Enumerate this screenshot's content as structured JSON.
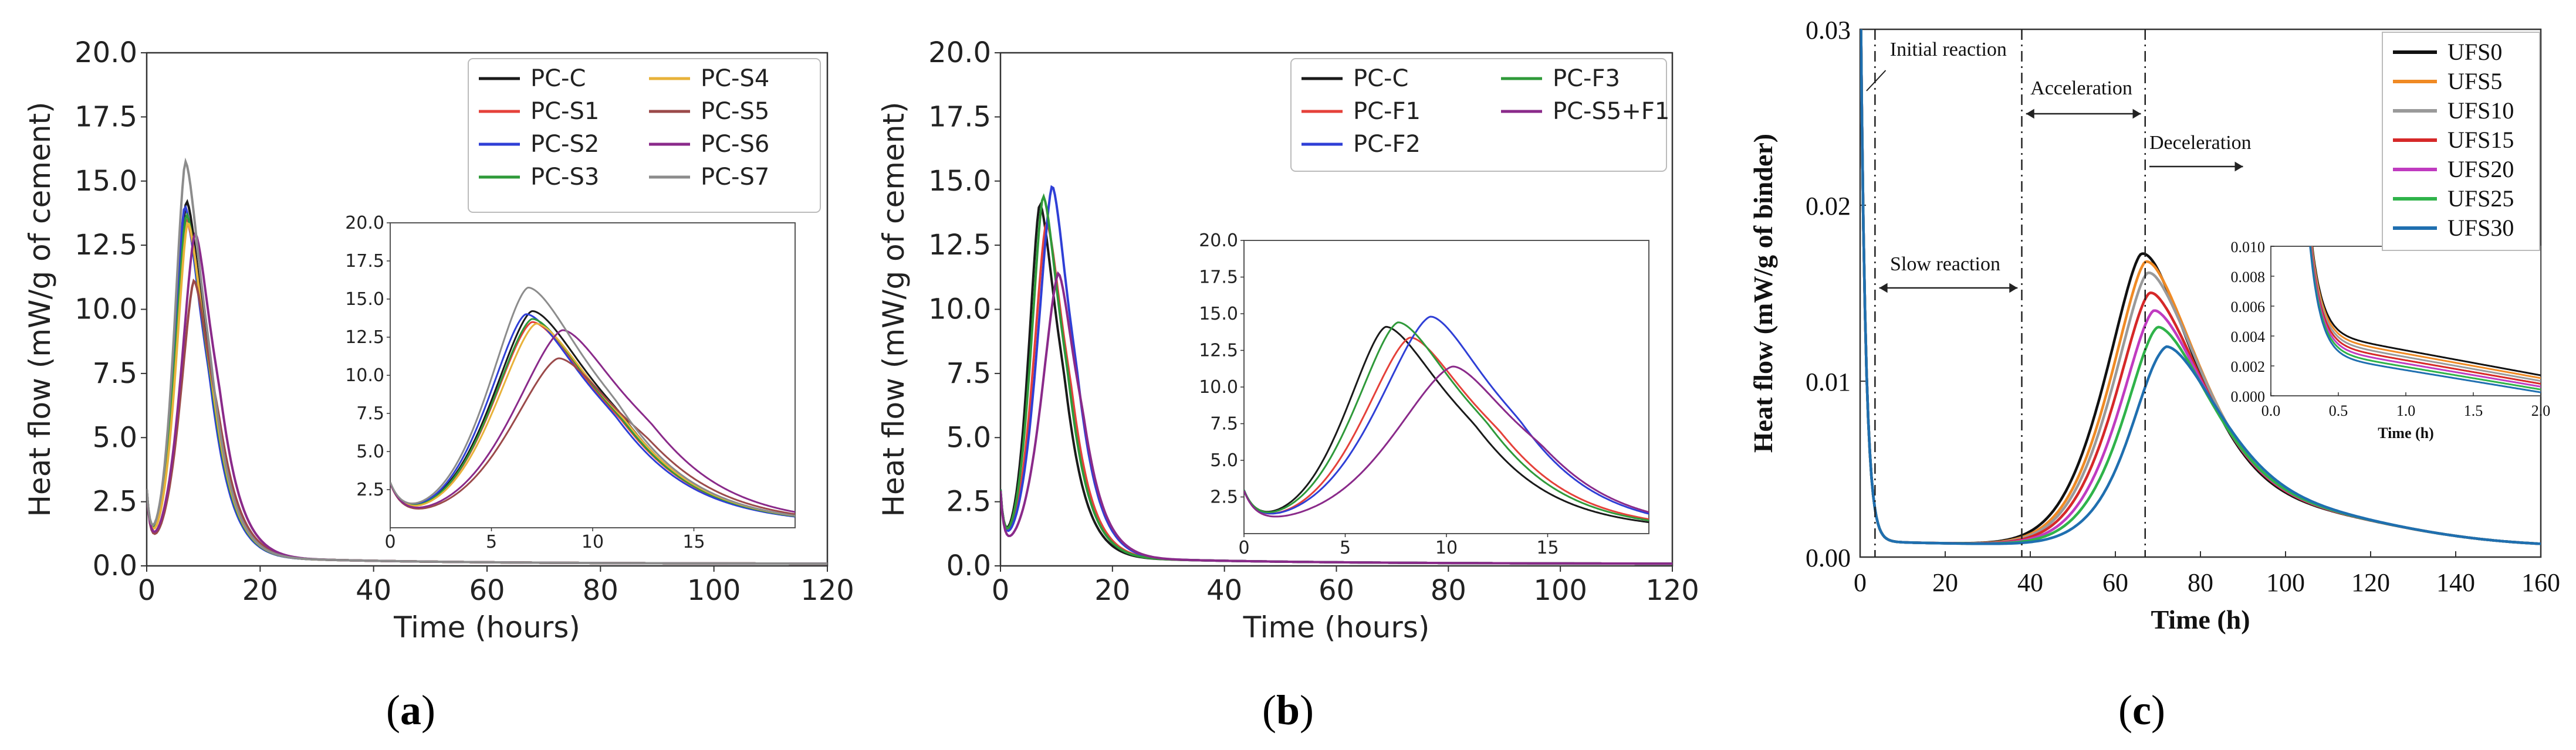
{
  "chart_data": [
    {
      "type": "line",
      "panel_label": "(a)",
      "panel_label_parts": [
        "(",
        "a",
        ")"
      ],
      "xlabel": "Time (hours)",
      "ylabel": "Heat flow (mW/g of cement)",
      "xlim": [
        0,
        120
      ],
      "ylim": [
        0,
        20
      ],
      "xticks": [
        "0",
        "20",
        "40",
        "60",
        "80",
        "100",
        "120"
      ],
      "yticks": [
        "0.0",
        "2.5",
        "5.0",
        "7.5",
        "10.0",
        "12.5",
        "15.0",
        "17.5",
        "20.0"
      ],
      "legend_position": "top-right",
      "series": [
        {
          "name": "PC-C",
          "color": "#1a1a1a",
          "peak_time": 7.0,
          "peak": 14.0
        },
        {
          "name": "PC-S1",
          "color": "#e5413a",
          "peak_time": 7.0,
          "peak": 13.3
        },
        {
          "name": "PC-S2",
          "color": "#2f3fd6",
          "peak_time": 6.7,
          "peak": 13.8
        },
        {
          "name": "PC-S3",
          "color": "#2f9a3a",
          "peak_time": 7.0,
          "peak": 13.5
        },
        {
          "name": "PC-S4",
          "color": "#e8b23a",
          "peak_time": 7.2,
          "peak": 13.2
        },
        {
          "name": "PC-S5",
          "color": "#9b4a4a",
          "peak_time": 8.3,
          "peak": 11.0
        },
        {
          "name": "PC-S6",
          "color": "#8a2a8a",
          "peak_time": 8.5,
          "peak": 12.8
        },
        {
          "name": "PC-S7",
          "color": "#8c8c8c",
          "peak_time": 6.8,
          "peak": 15.5
        }
      ],
      "inset": {
        "xlim": [
          0,
          20
        ],
        "ylim": [
          0,
          20
        ],
        "xticks": [
          "0",
          "5",
          "10",
          "15"
        ],
        "yticks": [
          "2.5",
          "5.0",
          "7.5",
          "10.0",
          "12.5",
          "15.0",
          "17.5",
          "20.0"
        ]
      }
    },
    {
      "type": "line",
      "panel_label": "(b)",
      "panel_label_parts": [
        "(",
        "b",
        ")"
      ],
      "xlabel": "Time (hours)",
      "ylabel": "Heat flow (mW/g of cement)",
      "xlim": [
        0,
        120
      ],
      "ylim": [
        0,
        20
      ],
      "xticks": [
        "0",
        "20",
        "40",
        "60",
        "80",
        "100",
        "120"
      ],
      "yticks": [
        "0.0",
        "2.5",
        "5.0",
        "7.5",
        "10.0",
        "12.5",
        "15.0",
        "17.5",
        "20.0"
      ],
      "legend_position": "top-right",
      "series": [
        {
          "name": "PC-C",
          "color": "#1a1a1a",
          "peak_time": 7.0,
          "peak": 13.9
        },
        {
          "name": "PC-F1",
          "color": "#e5413a",
          "peak_time": 8.2,
          "peak": 13.2
        },
        {
          "name": "PC-F2",
          "color": "#2f3fd6",
          "peak_time": 9.2,
          "peak": 14.6
        },
        {
          "name": "PC-F3",
          "color": "#2f9a3a",
          "peak_time": 7.6,
          "peak": 14.2
        },
        {
          "name": "PC-S5+F1",
          "color": "#8a2a8a",
          "peak_time": 10.3,
          "peak": 11.3
        }
      ],
      "inset": {
        "xlim": [
          0,
          20
        ],
        "ylim": [
          0,
          20
        ],
        "xticks": [
          "0",
          "5",
          "10",
          "15"
        ],
        "yticks": [
          "2.5",
          "5.0",
          "7.5",
          "10.0",
          "12.5",
          "15.0",
          "17.5",
          "20.0"
        ]
      }
    },
    {
      "type": "line",
      "panel_label": "(c)",
      "panel_label_parts": [
        "(",
        "c",
        ")"
      ],
      "xlabel": "Time (h)",
      "ylabel": "Heat flow (mW/g of binder)",
      "xlim": [
        0,
        160
      ],
      "ylim": [
        0,
        0.03
      ],
      "xticks": [
        "0",
        "20",
        "40",
        "60",
        "80",
        "100",
        "120",
        "140",
        "160"
      ],
      "yticks": [
        "0.00",
        "0.01",
        "0.02",
        "0.03"
      ],
      "legend_position": "top-right",
      "annotations": [
        "Initial reaction",
        "Slow reaction",
        "Acceleration",
        "Deceleration"
      ],
      "series": [
        {
          "name": "UFS0",
          "color": "#111111",
          "peak_time": 66,
          "peak": 0.0163
        },
        {
          "name": "UFS5",
          "color": "#f08a24",
          "peak_time": 67,
          "peak": 0.0157
        },
        {
          "name": "UFS10",
          "color": "#9a9a9a",
          "peak_time": 67.5,
          "peak": 0.015
        },
        {
          "name": "UFS15",
          "color": "#d62828",
          "peak_time": 68,
          "peak": 0.0138
        },
        {
          "name": "UFS20",
          "color": "#c03bc0",
          "peak_time": 69,
          "peak": 0.0127
        },
        {
          "name": "UFS25",
          "color": "#2fb34a",
          "peak_time": 70,
          "peak": 0.0117
        },
        {
          "name": "UFS30",
          "color": "#1f6fb0",
          "peak_time": 72,
          "peak": 0.0105
        }
      ],
      "inset": {
        "xlabel": "Time (h)",
        "xlim": [
          0,
          2
        ],
        "ylim": [
          0,
          0.01
        ],
        "xticks": [
          "0.0",
          "0.5",
          "1.0",
          "1.5",
          "2.0"
        ],
        "yticks": [
          "0.000",
          "0.002",
          "0.004",
          "0.006",
          "0.008",
          "0.010"
        ]
      }
    }
  ]
}
